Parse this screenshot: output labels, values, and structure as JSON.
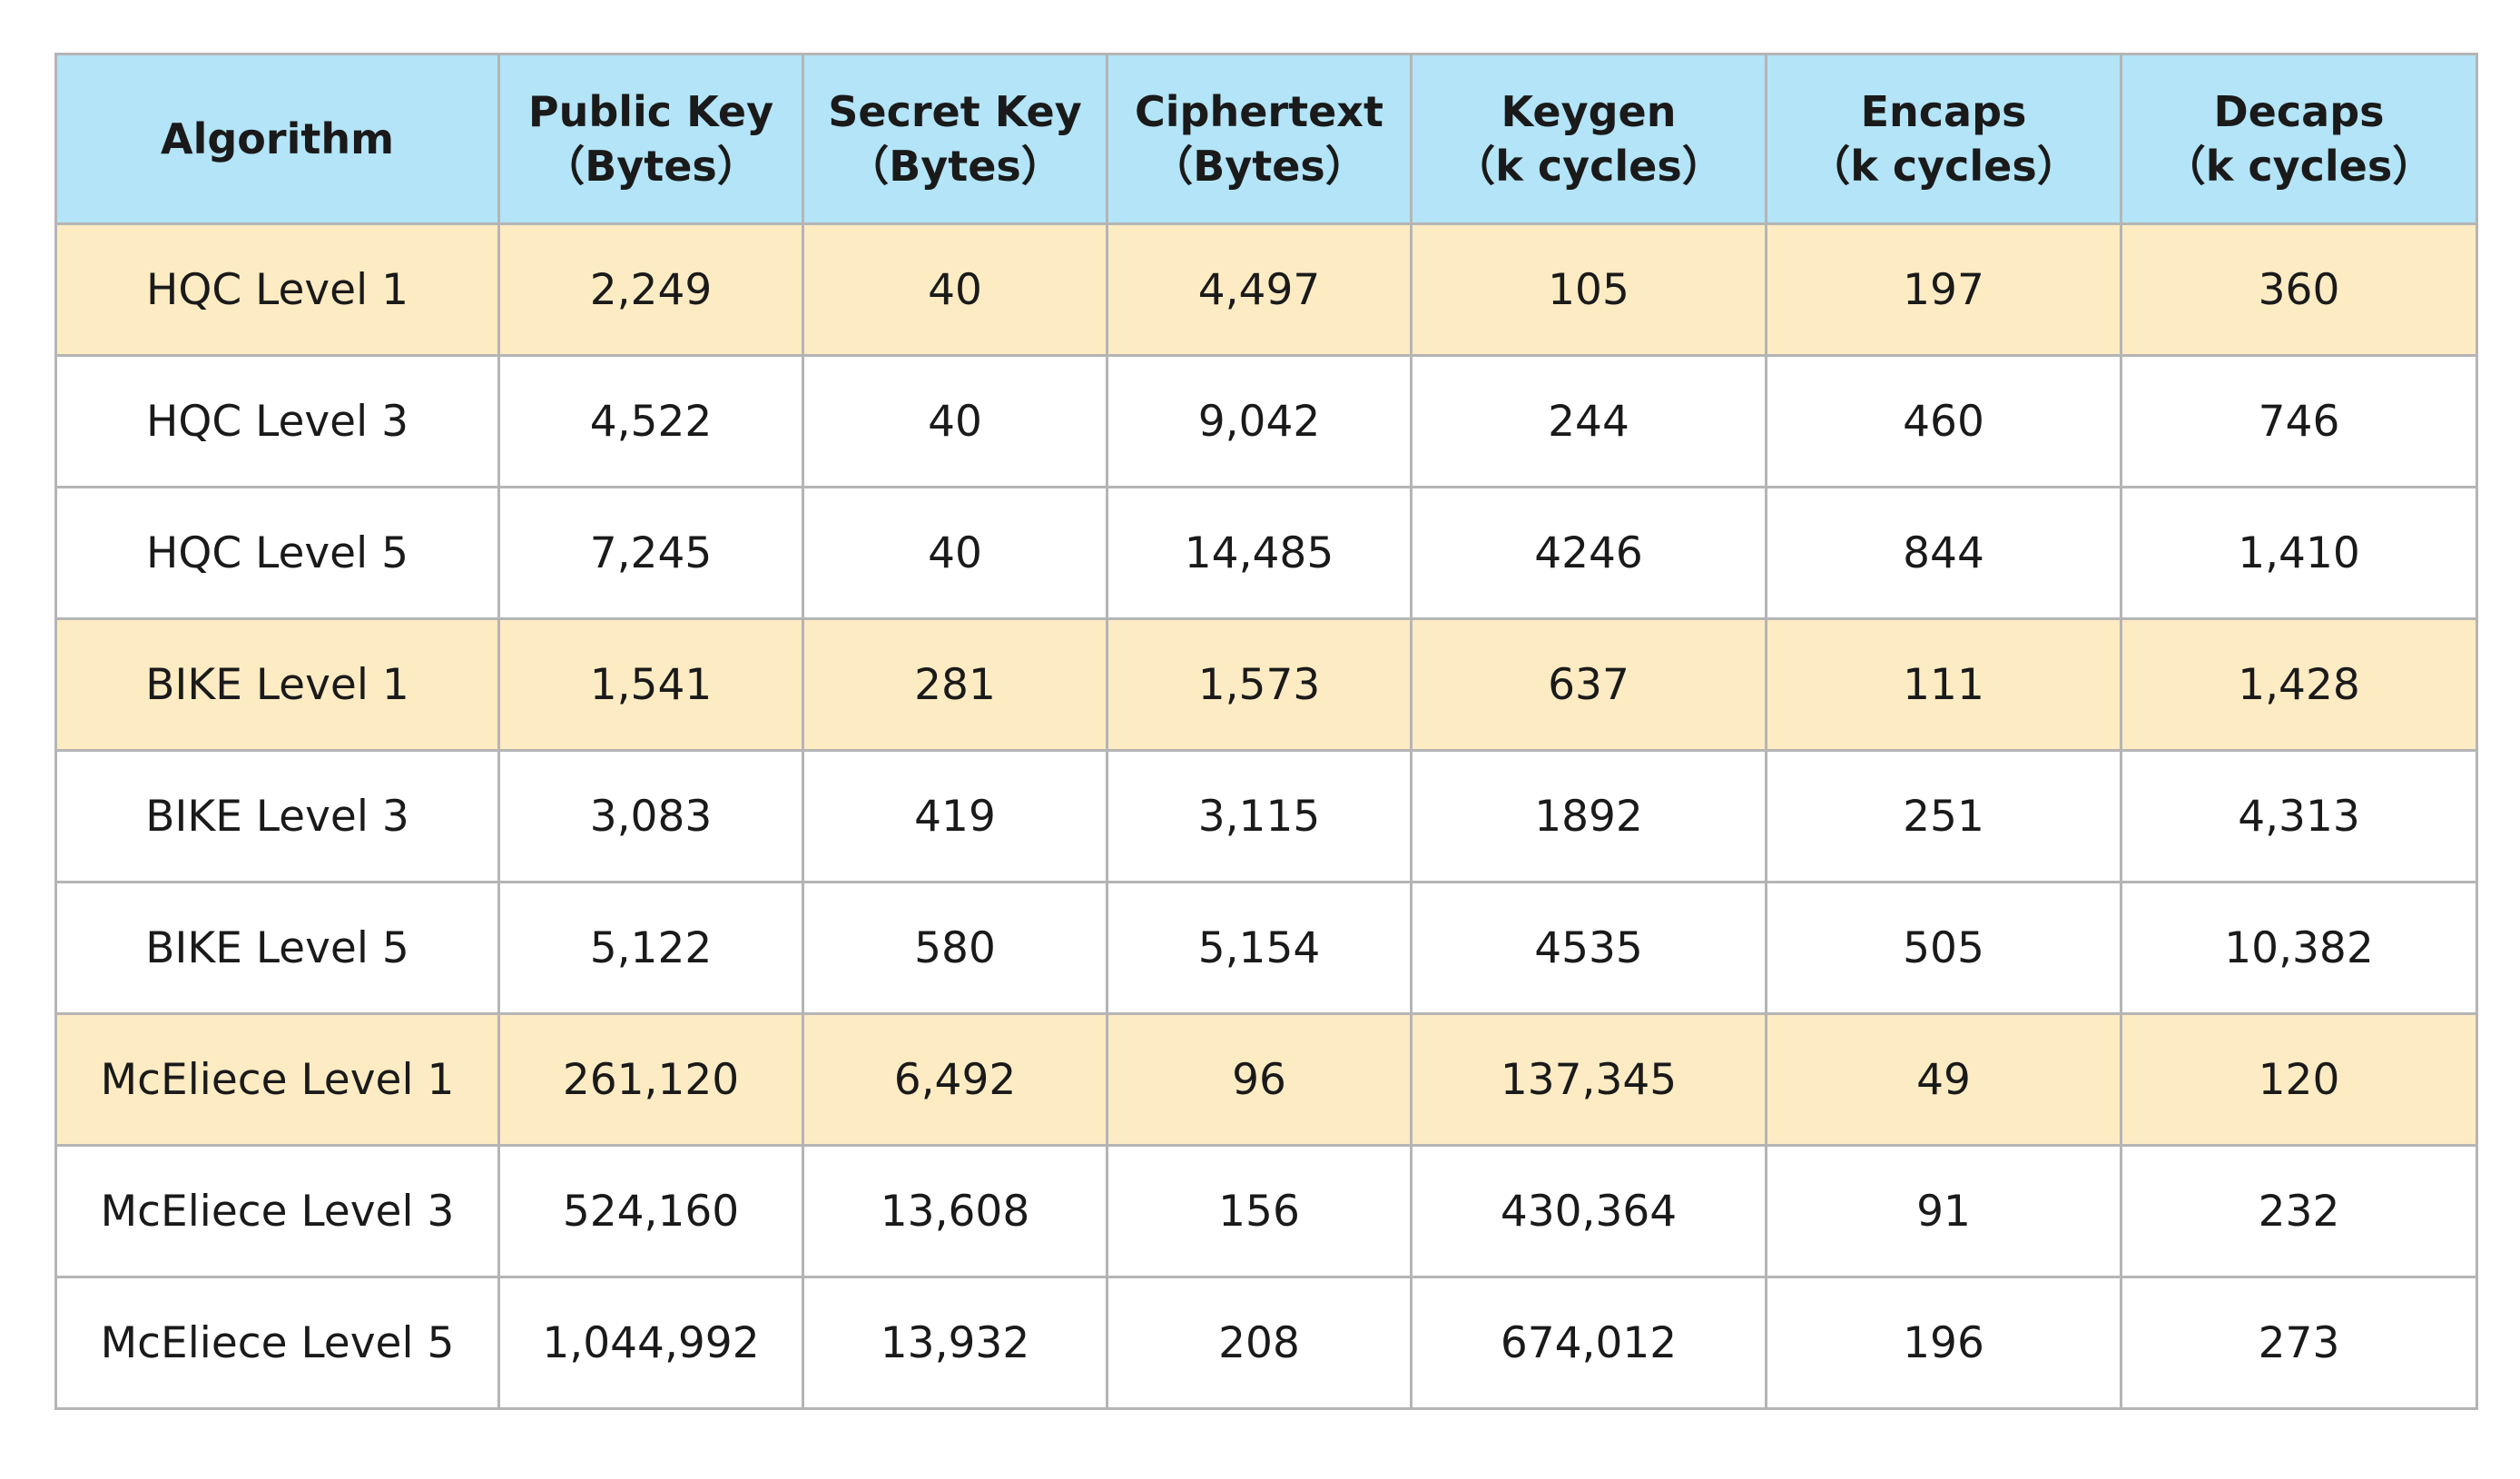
{
  "table": {
    "headers": [
      [
        "Algorithm"
      ],
      [
        "Public Key",
        "（Bytes）"
      ],
      [
        "Secret Key",
        "（Bytes）"
      ],
      [
        "Ciphertext",
        "（Bytes）"
      ],
      [
        "Keygen",
        "（k cycles）"
      ],
      [
        "Encaps",
        "（k cycles）"
      ],
      [
        "Decaps",
        "（k cycles）"
      ]
    ],
    "rows": [
      [
        "HQC Level 1",
        "2,249",
        "40",
        "4,497",
        "105",
        "197",
        "360"
      ],
      [
        "HQC Level 3",
        "4,522",
        "40",
        "9,042",
        "244",
        "460",
        "746"
      ],
      [
        "HQC Level 5",
        "7,245",
        "40",
        "14,485",
        "4246",
        "844",
        "1,410"
      ],
      [
        "BIKE Level 1",
        "1,541",
        "281",
        "1,573",
        "637",
        "111",
        "1,428"
      ],
      [
        "BIKE Level 3",
        "3,083",
        "419",
        "3,115",
        "1892",
        "251",
        "4,313"
      ],
      [
        "BIKE Level 5",
        "5,122",
        "580",
        "5,154",
        "4535",
        "505",
        "10,382"
      ],
      [
        "McEliece Level 1",
        "261,120",
        "6,492",
        "96",
        "137,345",
        "49",
        "120"
      ],
      [
        "McEliece Level 3",
        "524,160",
        "13,608",
        "156",
        "430,364",
        "91",
        "232"
      ],
      [
        "McEliece Level 5",
        "1,044,992",
        "13,932",
        "208",
        "674,012",
        "196",
        "273"
      ]
    ],
    "highlighted_rows": [
      0,
      3,
      6
    ]
  },
  "colors": {
    "header_bg": "#b3e4f7",
    "highlight_row_bg": "#fdebc3",
    "border": "#b5b5b5"
  }
}
